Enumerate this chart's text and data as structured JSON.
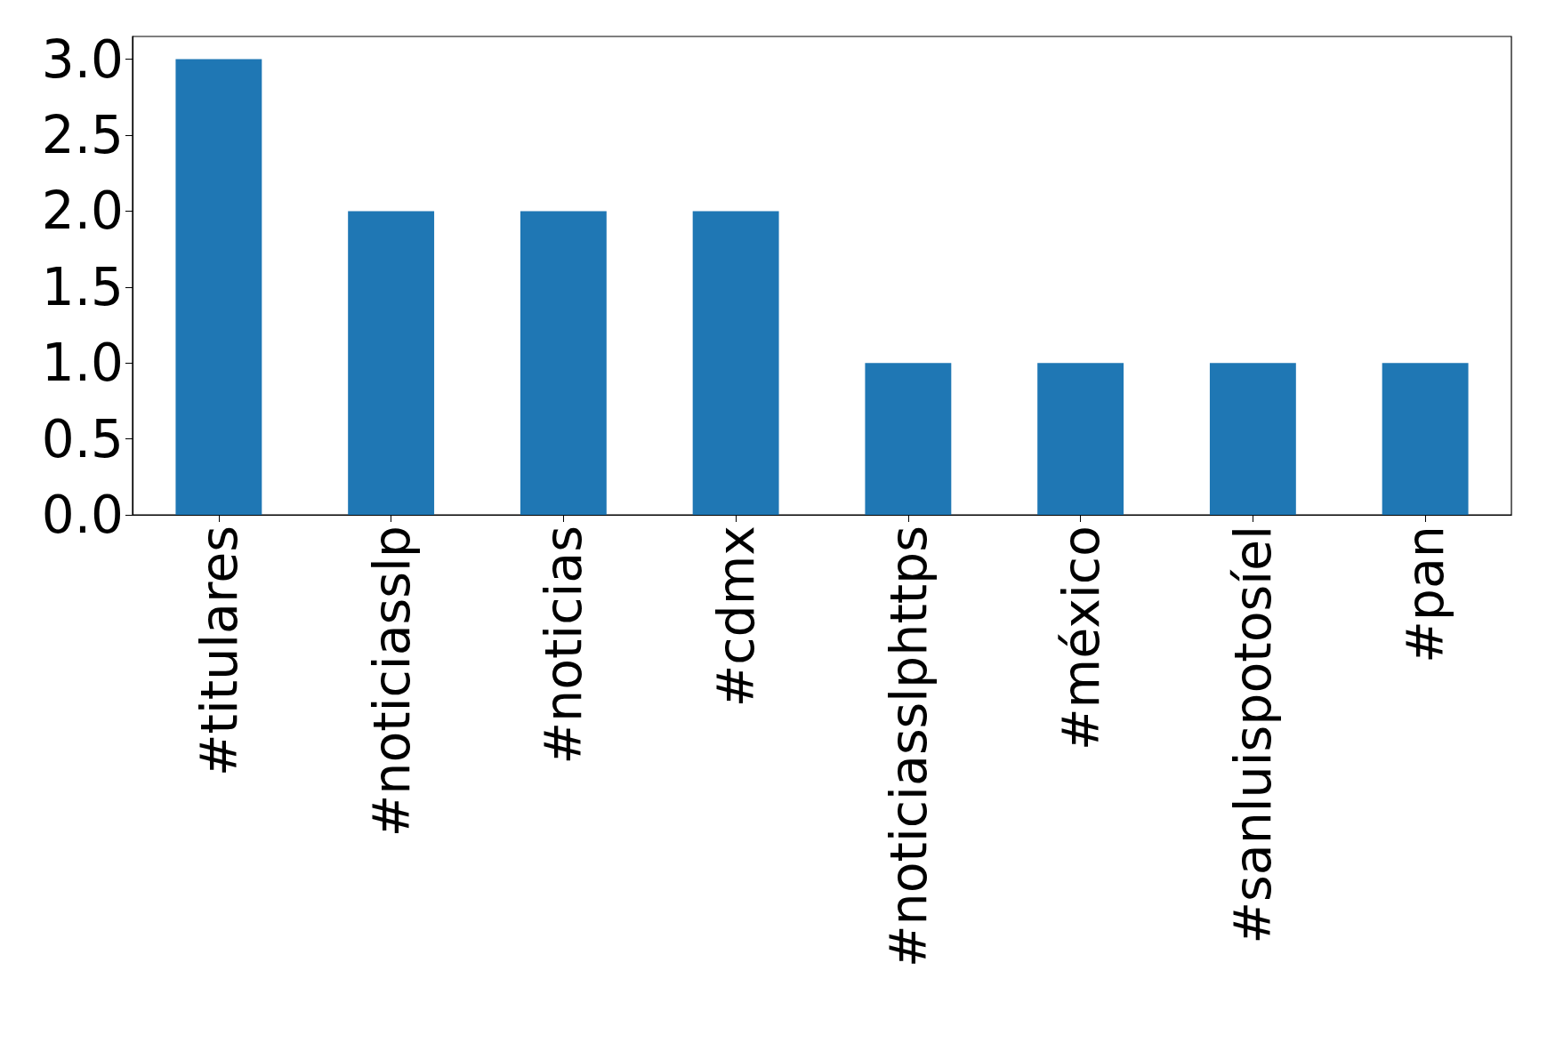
{
  "chart_data": {
    "type": "bar",
    "categories": [
      "#titulares",
      "#noticiasslp",
      "#noticias",
      "#cdmx",
      "#noticiasslphttps",
      "#méxico",
      "#sanluispotosíel",
      "#pan"
    ],
    "values": [
      3,
      2,
      2,
      2,
      1,
      1,
      1,
      1
    ],
    "color": "#1f77b4",
    "ylim": [
      0,
      3.15
    ],
    "yticks": [
      {
        "value": 0,
        "label": "0.0"
      },
      {
        "value": 0.5,
        "label": "0.5"
      },
      {
        "value": 1,
        "label": "1.0"
      },
      {
        "value": 1.5,
        "label": "1.5"
      },
      {
        "value": 2,
        "label": "2.0"
      },
      {
        "value": 2.5,
        "label": "2.5"
      },
      {
        "value": 3,
        "label": "3.0"
      }
    ],
    "grid": false
  }
}
